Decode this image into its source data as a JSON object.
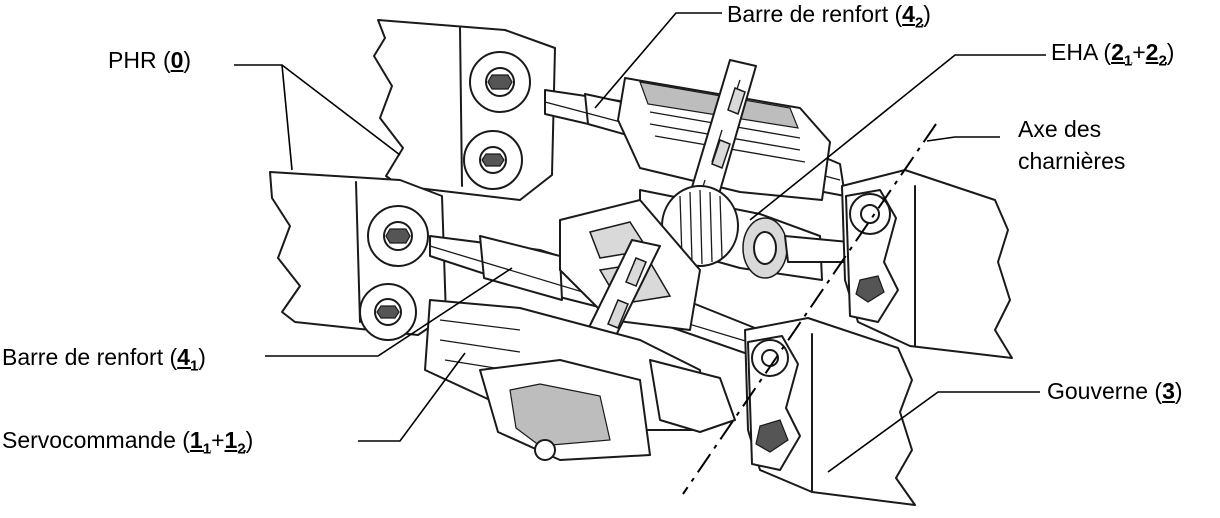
{
  "labels": {
    "phr": {
      "text": "PHR (",
      "num": "0",
      "sub": "",
      "mid": "",
      "num2": "",
      "sub2": "",
      "end": ")"
    },
    "barre_top": {
      "text": "Barre de renfort (",
      "num": "4",
      "sub": "2",
      "mid": "",
      "num2": "",
      "sub2": "",
      "end": ")"
    },
    "eha": {
      "text": "EHA (",
      "num": "2",
      "sub": "1",
      "mid": "+",
      "num2": "2",
      "sub2": "2",
      "end": ")"
    },
    "axe_line1": "Axe des",
    "axe_line2": "charnières",
    "barre_bottom": {
      "text": "Barre de renfort (",
      "num": "4",
      "sub": "1",
      "mid": "",
      "num2": "",
      "sub2": "",
      "end": ")"
    },
    "servo": {
      "text": "Servocommande (",
      "num": "1",
      "sub": "1",
      "mid": "+",
      "num2": "1",
      "sub2": "2",
      "end": ")"
    },
    "gouverne": {
      "text": "Gouverne (",
      "num": "3",
      "sub": "",
      "mid": "",
      "num2": "",
      "sub2": "",
      "end": ")"
    }
  }
}
